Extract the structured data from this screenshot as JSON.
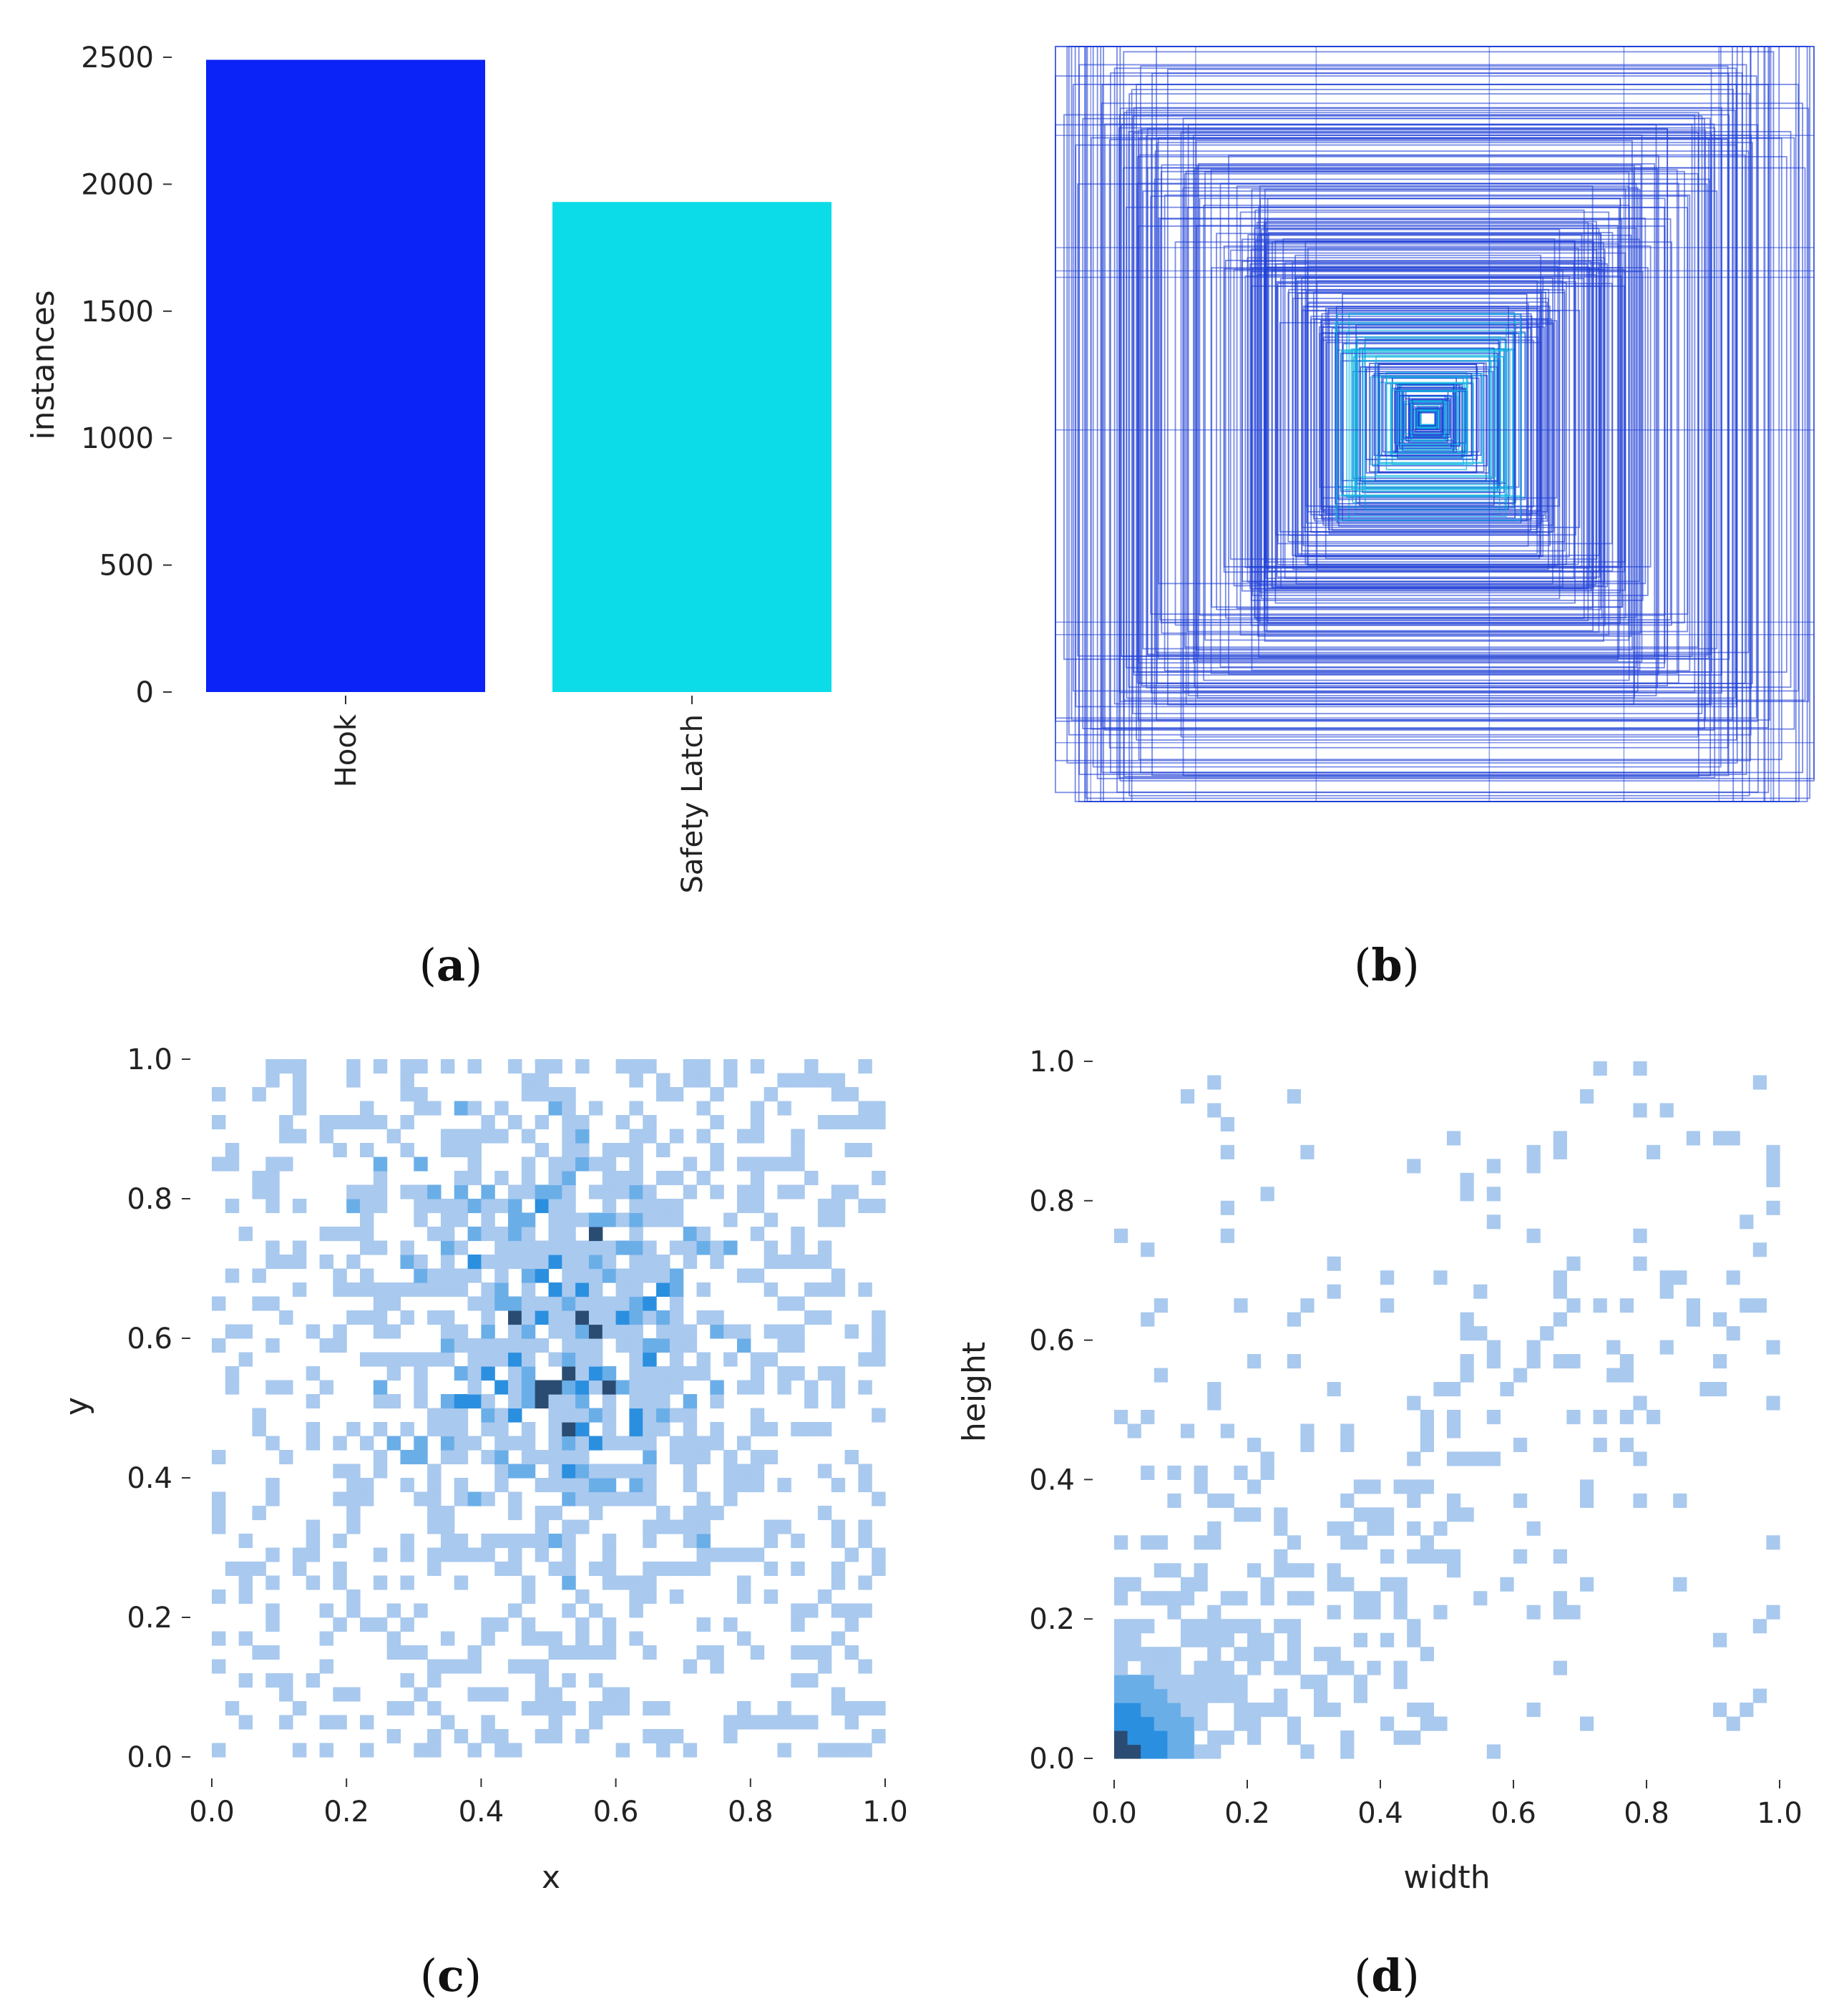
{
  "panels": {
    "a": {
      "caption_open": "(",
      "caption_letter": "a",
      "caption_close": ")"
    },
    "b": {
      "caption_open": "(",
      "caption_letter": "b",
      "caption_close": ")"
    },
    "c": {
      "caption_open": "(",
      "caption_letter": "c",
      "caption_close": ")"
    },
    "d": {
      "caption_open": "(",
      "caption_letter": "d",
      "caption_close": ")"
    }
  },
  "chart_data": [
    {
      "id": "a",
      "type": "bar",
      "title": "",
      "xlabel": "",
      "ylabel": "instances",
      "categories": [
        "Hook",
        "Safety Latch"
      ],
      "values": [
        2490,
        1930
      ],
      "colors": [
        "#0b23f7",
        "#0bdce8"
      ],
      "ylim": [
        0,
        2500
      ],
      "yticks": [
        0,
        500,
        1000,
        1500,
        2000,
        2500
      ],
      "ytick_labels": [
        "0",
        "500",
        "1000",
        "1500",
        "2000",
        "2500"
      ],
      "grid": false
    },
    {
      "id": "b",
      "type": "other",
      "description_kind": "overlaid bounding boxes centered",
      "line_color": "#1f3fd6",
      "accent_color": "#13b8e0"
    },
    {
      "id": "c",
      "type": "heatmap",
      "xlabel": "x",
      "ylabel": "y",
      "xlim": [
        0,
        1
      ],
      "ylim": [
        0,
        1
      ],
      "xticks": [
        "0.0",
        "0.2",
        "0.4",
        "0.6",
        "0.8",
        "1.0"
      ],
      "yticks": [
        "0.0",
        "0.2",
        "0.4",
        "0.6",
        "0.8",
        "1.0"
      ],
      "bins": 50,
      "distribution": "center x,y density concentrated around x≈0.5, y≈0.65",
      "colors": [
        "#a9c9ee",
        "#6aaee8",
        "#2b8fe0",
        "#2a4c72"
      ]
    },
    {
      "id": "d",
      "type": "heatmap",
      "xlabel": "width",
      "ylabel": "height",
      "xlim": [
        0,
        1
      ],
      "ylim": [
        0,
        1
      ],
      "xticks": [
        "0.0",
        "0.2",
        "0.4",
        "0.6",
        "0.8",
        "1.0"
      ],
      "yticks": [
        "0.0",
        "0.2",
        "0.4",
        "0.6",
        "0.8",
        "1.0"
      ],
      "bins": 50,
      "distribution": "width/height density concentrated near (0.02,0.02), spreading along diagonal",
      "colors": [
        "#a9c9ee",
        "#6aaee8",
        "#2b8fe0",
        "#2a4c72"
      ]
    }
  ]
}
